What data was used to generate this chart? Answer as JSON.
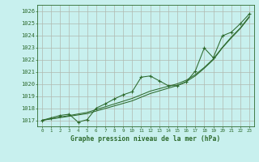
{
  "title": "Graphe pression niveau de la mer (hPa)",
  "bg_color": "#c8f0ee",
  "grid_color": "#b0b8b0",
  "line_color": "#2d6a2d",
  "x_labels": [
    "0",
    "1",
    "2",
    "3",
    "4",
    "5",
    "6",
    "7",
    "8",
    "9",
    "10",
    "11",
    "12",
    "13",
    "14",
    "15",
    "16",
    "17",
    "18",
    "19",
    "20",
    "21",
    "22",
    "23"
  ],
  "ylim": [
    1016.5,
    1026.5
  ],
  "yticks": [
    1017,
    1018,
    1019,
    1020,
    1021,
    1022,
    1023,
    1024,
    1025,
    1026
  ],
  "y_main": [
    1017.0,
    1017.2,
    1017.4,
    1017.5,
    1016.85,
    1017.05,
    1018.0,
    1018.35,
    1018.75,
    1019.1,
    1019.35,
    1020.55,
    1020.65,
    1020.25,
    1019.85,
    1019.85,
    1020.15,
    1021.05,
    1022.95,
    1022.15,
    1023.95,
    1024.25,
    1024.95,
    1025.75
  ],
  "y_trend1": [
    1017.0,
    1017.13,
    1017.26,
    1017.39,
    1017.52,
    1017.65,
    1017.88,
    1018.11,
    1018.34,
    1018.57,
    1018.8,
    1019.1,
    1019.4,
    1019.6,
    1019.8,
    1020.0,
    1020.3,
    1020.75,
    1021.35,
    1022.05,
    1023.0,
    1023.85,
    1024.6,
    1025.55
  ],
  "y_trend2": [
    1017.0,
    1017.11,
    1017.22,
    1017.33,
    1017.44,
    1017.55,
    1017.76,
    1017.97,
    1018.18,
    1018.39,
    1018.6,
    1018.9,
    1019.2,
    1019.42,
    1019.64,
    1019.86,
    1020.18,
    1020.65,
    1021.28,
    1021.98,
    1022.95,
    1023.78,
    1024.55,
    1025.48
  ]
}
